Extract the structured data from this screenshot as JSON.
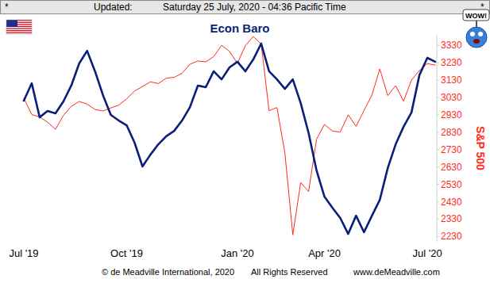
{
  "header": {
    "left": "*",
    "label": "Updated:",
    "timestamp": "Saturday 25 July, 2020 - 04:36 Pacific Time",
    "right": "*"
  },
  "footer": {
    "left": "© de Meadville International, 2020",
    "center": "All Rights Reserved",
    "right": "www.deMeadville.com"
  },
  "chart_data": {
    "type": "line",
    "title": "Econ Baro",
    "y2_label": "S&P 500",
    "annotations": [
      "WOW!"
    ],
    "categories": [
      "Jul '19",
      null,
      null,
      null,
      null,
      null,
      null,
      null,
      null,
      null,
      null,
      null,
      null,
      "Oct '19",
      null,
      null,
      null,
      null,
      null,
      null,
      null,
      null,
      null,
      null,
      null,
      null,
      null,
      "Jan '20",
      null,
      null,
      null,
      null,
      null,
      null,
      null,
      null,
      null,
      null,
      "Apr '20",
      null,
      null,
      null,
      null,
      null,
      null,
      null,
      null,
      null,
      null,
      null,
      null,
      "Jul '20",
      null
    ],
    "ylim": [
      0,
      100
    ],
    "yticks": [],
    "y2lim": [
      2200,
      3390
    ],
    "y2ticks": [
      2230,
      2330,
      2430,
      2530,
      2630,
      2730,
      2830,
      2930,
      3030,
      3130,
      3230,
      3330
    ],
    "series": [
      {
        "color": "#0a1f7a",
        "axis": "y",
        "values": [
          68.2,
          76.6,
          60.2,
          63.2,
          62.1,
          67.8,
          75.5,
          86.2,
          92.3,
          82.4,
          70.9,
          61.3,
          58.6,
          56.3,
          47.9,
          36.4,
          42.1,
          47.1,
          51.0,
          53.6,
          58.6,
          65.1,
          75.5,
          74.7,
          82.4,
          78.5,
          84.3,
          87.0,
          82.4,
          88.1,
          95.8,
          82.4,
          78.5,
          73.9,
          78.5,
          67.0,
          52.5,
          34.5,
          21.8,
          16.5,
          11.5,
          3.8,
          12.6,
          4.6,
          12.6,
          20.3,
          35.6,
          47.1,
          55.6,
          62.5,
          80.5,
          88.9,
          87.0
        ]
      },
      {
        "color": "#ff2a1a",
        "axis": "y2",
        "values": [
          3025,
          2932,
          2918,
          2888,
          2847,
          2926,
          2979,
          3007,
          2992,
          2961,
          2952,
          2970,
          2986,
          3022,
          3067,
          3093,
          3120,
          3110,
          3141,
          3146,
          3169,
          3221,
          3240,
          3235,
          3265,
          3330,
          3295,
          3226,
          3328,
          3380,
          3338,
          2954,
          2972,
          2711,
          2240,
          2541,
          2489,
          2790,
          2875,
          2837,
          2831,
          2930,
          2864,
          2955,
          3044,
          3194,
          3041,
          3098,
          3009,
          3130,
          3185,
          3225,
          3216
        ]
      }
    ]
  }
}
